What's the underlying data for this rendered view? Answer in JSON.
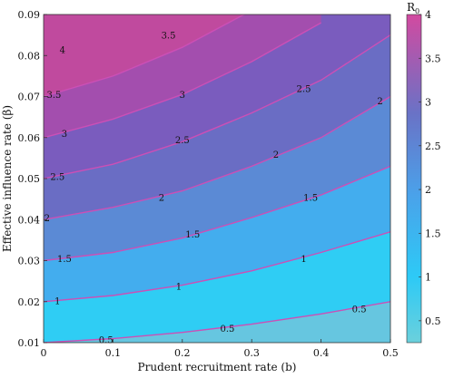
{
  "chart_data": {
    "type": "heatmap",
    "subtype": "filled-contour",
    "xlabel": "Prudent recruitment rate (b)",
    "ylabel": "Effective influence rate (β)",
    "colorbar_label_main": "R",
    "colorbar_label_sub": "0",
    "xlim": [
      0,
      0.5
    ],
    "ylim": [
      0.01,
      0.09
    ],
    "x_ticks": [
      0,
      0.1,
      0.2,
      0.3,
      0.4,
      0.5
    ],
    "x_tick_labels": [
      "0",
      "0.1",
      "0.2",
      "0.3",
      "0.4",
      "0.5"
    ],
    "y_ticks": [
      0.01,
      0.02,
      0.03,
      0.04,
      0.05,
      0.06,
      0.07,
      0.08,
      0.09
    ],
    "y_tick_labels": [
      "0.01",
      "0.02",
      "0.03",
      "0.04",
      "0.05",
      "0.06",
      "0.07",
      "0.08",
      "0.09"
    ],
    "colorbar_range": [
      0.25,
      4
    ],
    "colorbar_ticks": [
      0.5,
      1,
      1.5,
      2,
      2.5,
      3,
      3.5,
      4
    ],
    "colorbar_tick_labels": [
      "0.5",
      "1",
      "1.5",
      "2",
      "2.5",
      "3",
      "3.5",
      "4"
    ],
    "contour_levels": [
      0.5,
      1,
      1.5,
      2,
      2.5,
      3,
      3.5
    ],
    "contours": [
      {
        "level": 0.5,
        "label": "0.5",
        "points": [
          [
            0.0,
            0.01
          ],
          [
            0.1,
            0.011
          ],
          [
            0.2,
            0.0125
          ],
          [
            0.3,
            0.0145
          ],
          [
            0.4,
            0.017
          ],
          [
            0.5,
            0.02
          ]
        ]
      },
      {
        "level": 1,
        "label": "1",
        "points": [
          [
            0.0,
            0.02
          ],
          [
            0.1,
            0.0215
          ],
          [
            0.2,
            0.024
          ],
          [
            0.3,
            0.0275
          ],
          [
            0.4,
            0.032
          ],
          [
            0.5,
            0.037
          ]
        ]
      },
      {
        "level": 1.5,
        "label": "1.5",
        "points": [
          [
            0.0,
            0.03
          ],
          [
            0.1,
            0.032
          ],
          [
            0.2,
            0.0355
          ],
          [
            0.3,
            0.0405
          ],
          [
            0.4,
            0.046
          ],
          [
            0.5,
            0.053
          ]
        ]
      },
      {
        "level": 2,
        "label": "2",
        "points": [
          [
            0.0,
            0.04
          ],
          [
            0.1,
            0.043
          ],
          [
            0.2,
            0.047
          ],
          [
            0.3,
            0.053
          ],
          [
            0.4,
            0.06
          ],
          [
            0.5,
            0.07
          ]
        ]
      },
      {
        "level": 2.5,
        "label": "2.5",
        "points": [
          [
            0.0,
            0.05
          ],
          [
            0.1,
            0.0535
          ],
          [
            0.2,
            0.059
          ],
          [
            0.3,
            0.066
          ],
          [
            0.4,
            0.074
          ],
          [
            0.5,
            0.085
          ]
        ]
      },
      {
        "level": 3,
        "label": "3",
        "points": [
          [
            0.0,
            0.06
          ],
          [
            0.1,
            0.0645
          ],
          [
            0.2,
            0.0705
          ],
          [
            0.3,
            0.0785
          ],
          [
            0.4,
            0.088
          ]
        ]
      },
      {
        "level": 3.5,
        "label": "3.5",
        "points": [
          [
            0.0,
            0.07
          ],
          [
            0.1,
            0.075
          ],
          [
            0.2,
            0.082
          ],
          [
            0.3,
            0.091
          ]
        ]
      }
    ],
    "region_labels": [
      {
        "value": "4",
        "x": 0.01,
        "y": 0.0815
      }
    ],
    "contour_label_positions": [
      {
        "label": "0.5",
        "x": 0.09,
        "y": 0.0108
      },
      {
        "label": "0.5",
        "x": 0.265,
        "y": 0.0135
      },
      {
        "label": "0.5",
        "x": 0.455,
        "y": 0.0183
      },
      {
        "label": "1",
        "x": 0.02,
        "y": 0.0203
      },
      {
        "label": "1",
        "x": 0.195,
        "y": 0.0238
      },
      {
        "label": "1",
        "x": 0.375,
        "y": 0.0305
      },
      {
        "label": "1.5",
        "x": 0.03,
        "y": 0.0305
      },
      {
        "label": "1.5",
        "x": 0.215,
        "y": 0.0365
      },
      {
        "label": "1.5",
        "x": 0.385,
        "y": 0.0455
      },
      {
        "label": "2",
        "x": 0.005,
        "y": 0.0405
      },
      {
        "label": "2",
        "x": 0.17,
        "y": 0.0455
      },
      {
        "label": "2",
        "x": 0.335,
        "y": 0.056
      },
      {
        "label": "2",
        "x": 0.485,
        "y": 0.069
      },
      {
        "label": "2.5",
        "x": 0.02,
        "y": 0.0505
      },
      {
        "label": "2.5",
        "x": 0.2,
        "y": 0.0595
      },
      {
        "label": "2.5",
        "x": 0.375,
        "y": 0.072
      },
      {
        "label": "3",
        "x": 0.03,
        "y": 0.061
      },
      {
        "label": "3",
        "x": 0.2,
        "y": 0.0705
      },
      {
        "label": "3.5",
        "x": 0.015,
        "y": 0.0705
      },
      {
        "label": "3.5",
        "x": 0.18,
        "y": 0.085
      }
    ],
    "band_colors": [
      "#66c6e0",
      "#2fcdf4",
      "#43adee",
      "#5b8ad5",
      "#6a6dc4",
      "#7a5cbe",
      "#a34eae",
      "#c04a9e"
    ],
    "contour_line_color": "#cc4fb6",
    "colorbar_stops": [
      {
        "at": 0.0,
        "color": "#6bd0dc"
      },
      {
        "at": 0.2,
        "color": "#2dcaf6"
      },
      {
        "at": 0.45,
        "color": "#4aa2ea"
      },
      {
        "at": 0.7,
        "color": "#6a72c6"
      },
      {
        "at": 1.0,
        "color": "#d24aa0"
      }
    ],
    "grid": false,
    "legend": "colorbar-right"
  }
}
